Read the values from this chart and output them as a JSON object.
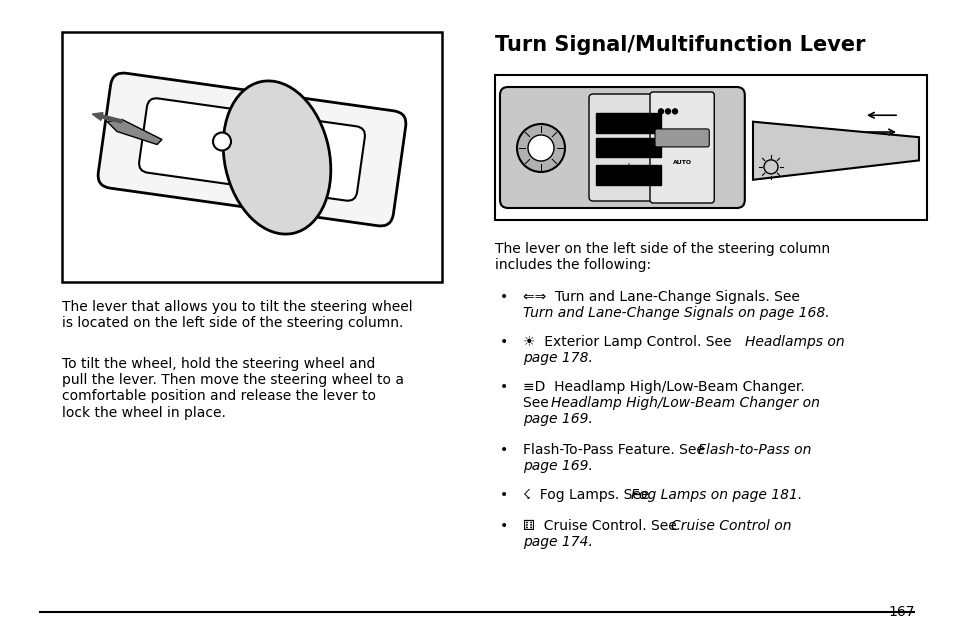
{
  "bg_color": "#ffffff",
  "page_number": "167",
  "title": "Turn Signal/Multifunction Lever",
  "left_para1": "The lever that allows you to tilt the steering wheel\nis located on the left side of the steering column.",
  "left_para2": "To tilt the wheel, hold the steering wheel and\npull the lever. Then move the steering wheel to a\ncomfortable position and release the lever to\nlock the wheel in place.",
  "right_intro": "The lever on the left side of the steering column\nincludes the following:",
  "font_size_title": 15,
  "font_size_body": 10,
  "font_size_page": 10,
  "bullet1_icon": "⇐⇒",
  "bullet1_regular": "  Turn and Lane-Change Signals. See",
  "bullet1_italic": "Turn and Lane-Change Signals on page 168.",
  "bullet2_icon": "☀",
  "bullet2_regular": "  Exterior Lamp Control. See ",
  "bullet2_italic1": "Headlamps on",
  "bullet2_italic2": "page 178.",
  "bullet3_icon": "≡D",
  "bullet3_regular": "  Headlamp High/Low-Beam Changer.",
  "bullet3_see": "See ",
  "bullet3_italic1": "Headlamp High/Low-Beam Changer on",
  "bullet3_italic2": "page 169.",
  "bullet4_regular": "Flash-To-Pass Feature. See ",
  "bullet4_italic1": "Flash-to-Pass on",
  "bullet4_italic2": "page 169.",
  "bullet5_icon": "☇",
  "bullet5_regular": "  Fog Lamps. See ",
  "bullet5_italic": "Fog Lamps on page 181.",
  "bullet6_icon": "⚅",
  "bullet6_regular": "  Cruise Control. See ",
  "bullet6_italic1": "Cruise Control on",
  "bullet6_italic2": "page 174."
}
